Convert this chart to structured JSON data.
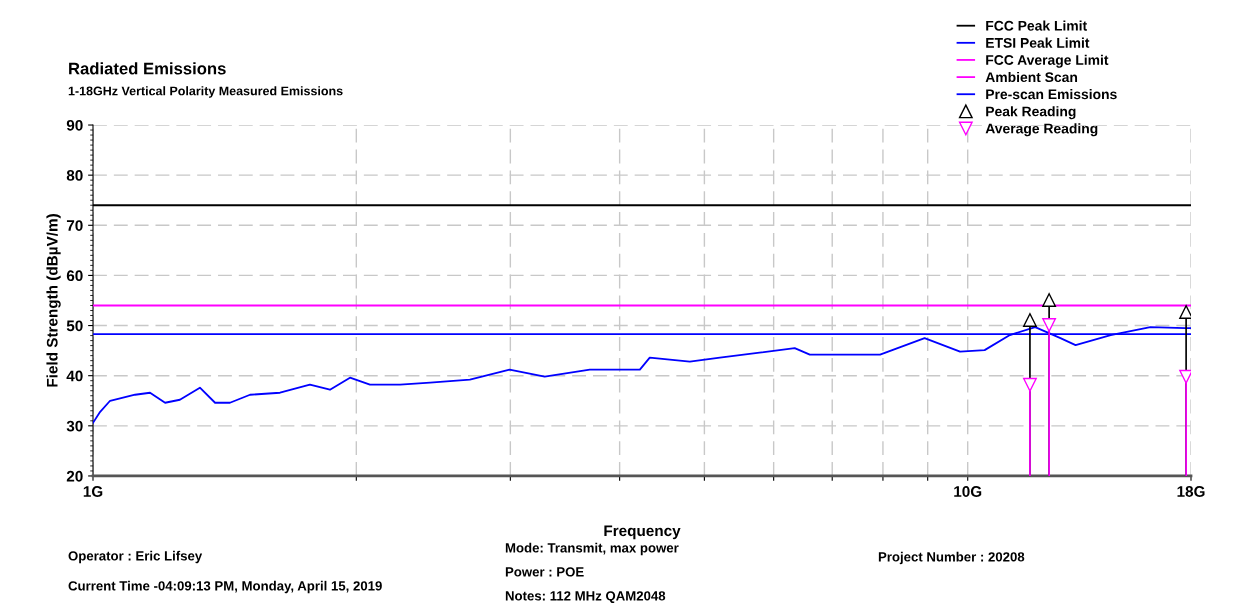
{
  "chart_data": {
    "type": "line",
    "title": "Radiated Emissions",
    "subtitle": "1-18GHz Vertical Polarity Measured Emissions",
    "xlabel": "Frequency",
    "ylabel": "Field Strength (dBµV/m)",
    "log": "x",
    "xlim": [
      1,
      18
    ],
    "ylim": [
      20,
      90
    ],
    "xticks": [
      {
        "value": 1,
        "label": "1G"
      },
      {
        "value": 2,
        "label": null
      },
      {
        "value": 3,
        "label": null
      },
      {
        "value": 4,
        "label": null
      },
      {
        "value": 5,
        "label": null
      },
      {
        "value": 6,
        "label": null
      },
      {
        "value": 7,
        "label": null
      },
      {
        "value": 8,
        "label": null
      },
      {
        "value": 9,
        "label": null
      },
      {
        "value": 10,
        "label": "10G"
      },
      {
        "value": 18,
        "label": "18G"
      }
    ],
    "yticks": [
      20,
      30,
      40,
      50,
      60,
      70,
      80,
      90
    ],
    "grid": true,
    "legend": "top right",
    "series": [
      {
        "name": "FCC Peak Limit",
        "color": "#000000",
        "x": [
          1,
          18
        ],
        "values": [
          74,
          74
        ]
      },
      {
        "name": "ETSI Peak Limit",
        "color": "#0000ff",
        "x": [
          1,
          18
        ],
        "values": [
          48.3,
          48.3
        ]
      },
      {
        "name": "FCC Average Limit",
        "color": "#ff00ff",
        "x": [
          1,
          18
        ],
        "values": [
          54,
          54
        ]
      },
      {
        "name": "Ambient Scan",
        "color": "#ff00ff"
      },
      {
        "name": "Pre-scan Emissions",
        "color": "#0000ff",
        "x": [
          1.0,
          1.019,
          1.046,
          1.117,
          1.162,
          1.209,
          1.257,
          1.325,
          1.379,
          1.434,
          1.512,
          1.636,
          1.77,
          1.866,
          1.967,
          2.073,
          2.244,
          2.429,
          2.697,
          2.994,
          3.284,
          3.698,
          4.219,
          4.33,
          4.812,
          5.208,
          5.781,
          6.342,
          6.599,
          7.142,
          7.94,
          8.927,
          9.8,
          10.455,
          11.174,
          11.943,
          12.765,
          13.283,
          14.569,
          16.171,
          17.727,
          18.0
        ],
        "values": [
          30.6,
          32.8,
          35,
          36.2,
          36.6,
          34.6,
          35.2,
          37.6,
          34.6,
          34.6,
          36.2,
          36.6,
          38.2,
          37.2,
          39.6,
          38.2,
          38.2,
          38.6,
          39.2,
          41.2,
          39.8,
          41.2,
          41.2,
          43.6,
          42.8,
          43.6,
          44.6,
          45.5,
          44.2,
          44.2,
          44.2,
          47.5,
          44.8,
          45.1,
          48.1,
          49.7,
          47.5,
          46.1,
          48.1,
          49.7,
          49.5,
          49.5
        ]
      },
      {
        "name": "Peak Reading",
        "type": "lollipop",
        "marker": "triangle",
        "color": "#000000",
        "x": [
          11.78,
          12.39,
          17.77
        ],
        "values": [
          51.1,
          55.1,
          52.7
        ]
      },
      {
        "name": "Average Reading",
        "type": "lollipop",
        "marker": "triangle_down",
        "color": "#ff00ff",
        "x": [
          11.78,
          12.39,
          17.77
        ],
        "values": [
          38.2,
          50.1,
          39.8
        ]
      }
    ],
    "annotations": [
      "Operator : Eric Lifsey",
      "Current Time -04:09:13 PM, Monday, April 15, 2019",
      "Mode: Transmit, max power",
      "Power : POE",
      "Notes: 112 MHz QAM2048",
      "Project Number : 20208"
    ]
  }
}
